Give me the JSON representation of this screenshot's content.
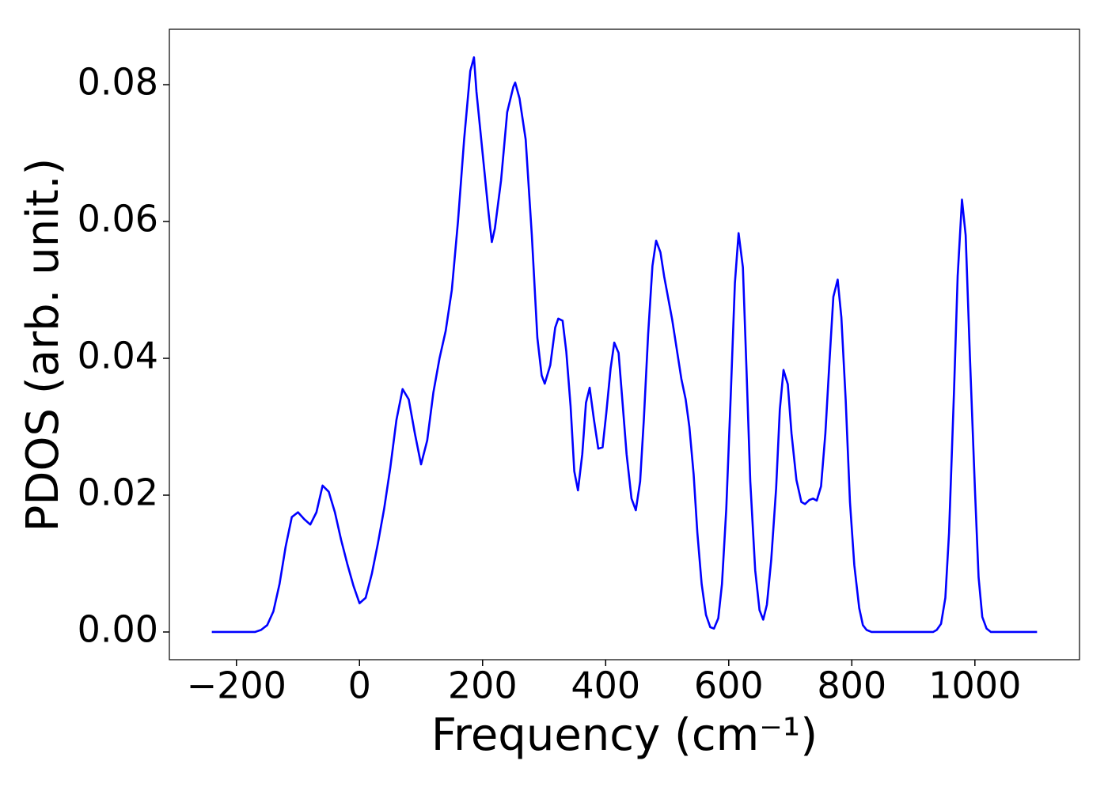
{
  "chart_data": {
    "type": "line",
    "x_label": "Frequency (cm⁻¹)",
    "y_label": "PDOS (arb. unit.)",
    "xlim": [
      -309,
      1170
    ],
    "ylim": [
      -0.00405,
      0.0881
    ],
    "xticks": [
      {
        "value": -200,
        "label": "−200"
      },
      0,
      200,
      400,
      600,
      800,
      1000
    ],
    "yticks": [
      {
        "value": 0,
        "label": "0.00"
      },
      {
        "value": 0.02,
        "label": "0.02"
      },
      {
        "value": 0.04,
        "label": "0.04"
      },
      {
        "value": 0.06,
        "label": "0.06"
      },
      {
        "value": 0.08,
        "label": "0.08"
      }
    ],
    "series": [
      {
        "color": "#0000ff",
        "x": [
          -240,
          -200,
          -170,
          -160,
          -150,
          -140,
          -130,
          -120,
          -110,
          -100,
          -90,
          -80,
          -70,
          -60,
          -50,
          -40,
          -30,
          -20,
          -10,
          0,
          10,
          20,
          30,
          40,
          50,
          60,
          70,
          80,
          90,
          100,
          110,
          120,
          130,
          140,
          150,
          160,
          170,
          180,
          186,
          190,
          200,
          210,
          215,
          220,
          230,
          240,
          250,
          253,
          260,
          270,
          280,
          289,
          296,
          301,
          310,
          318,
          323,
          330,
          336,
          343,
          349,
          355,
          362,
          368,
          374,
          381,
          388,
          395,
          401,
          408,
          414,
          421,
          427,
          434,
          442,
          449,
          456,
          462,
          469,
          476,
          482,
          489,
          495,
          508,
          523,
          530,
          536,
          543,
          549,
          556,
          563,
          570,
          576,
          583,
          589,
          596,
          603,
          610,
          616,
          623,
          629,
          635,
          643,
          650,
          656,
          662,
          669,
          677,
          683,
          689,
          696,
          702,
          710,
          718,
          724,
          731,
          737,
          743,
          750,
          757,
          764,
          770,
          777,
          783,
          790,
          797,
          804,
          812,
          818,
          824,
          832,
          900,
          932,
          938,
          945,
          952,
          958,
          966,
          972,
          979,
          985,
          992,
          1000,
          1006,
          1012,
          1019,
          1026,
          1101
        ],
        "values": [
          0,
          0,
          0,
          0.0003,
          0.001,
          0.003,
          0.007,
          0.0125,
          0.0168,
          0.0175,
          0.0165,
          0.0157,
          0.0175,
          0.0214,
          0.0205,
          0.0175,
          0.0135,
          0.01,
          0.0068,
          0.0042,
          0.005,
          0.0085,
          0.013,
          0.018,
          0.024,
          0.031,
          0.0355,
          0.034,
          0.029,
          0.0245,
          0.028,
          0.035,
          0.04,
          0.044,
          0.05,
          0.06,
          0.072,
          0.082,
          0.084,
          0.079,
          0.07,
          0.061,
          0.057,
          0.059,
          0.066,
          0.076,
          0.0797,
          0.0803,
          0.078,
          0.072,
          0.058,
          0.043,
          0.0375,
          0.0363,
          0.039,
          0.0445,
          0.0458,
          0.0455,
          0.041,
          0.033,
          0.0235,
          0.0207,
          0.026,
          0.0335,
          0.0357,
          0.031,
          0.0268,
          0.027,
          0.032,
          0.0385,
          0.0423,
          0.0408,
          0.034,
          0.026,
          0.0195,
          0.0178,
          0.022,
          0.031,
          0.0435,
          0.0535,
          0.0572,
          0.0555,
          0.052,
          0.0457,
          0.037,
          0.034,
          0.03,
          0.023,
          0.0145,
          0.007,
          0.0025,
          0.0007,
          0.0005,
          0.002,
          0.007,
          0.018,
          0.034,
          0.051,
          0.0583,
          0.0533,
          0.038,
          0.022,
          0.009,
          0.0032,
          0.0018,
          0.004,
          0.0105,
          0.021,
          0.0325,
          0.0383,
          0.0362,
          0.029,
          0.0222,
          0.019,
          0.0187,
          0.0193,
          0.0195,
          0.0192,
          0.0213,
          0.029,
          0.04,
          0.049,
          0.0515,
          0.046,
          0.034,
          0.019,
          0.0098,
          0.0035,
          0.001,
          0.0003,
          0,
          0,
          0,
          0.0003,
          0.0012,
          0.005,
          0.0145,
          0.035,
          0.052,
          0.0632,
          0.058,
          0.04,
          0.021,
          0.008,
          0.0022,
          0.0005,
          0,
          0
        ]
      }
    ]
  }
}
